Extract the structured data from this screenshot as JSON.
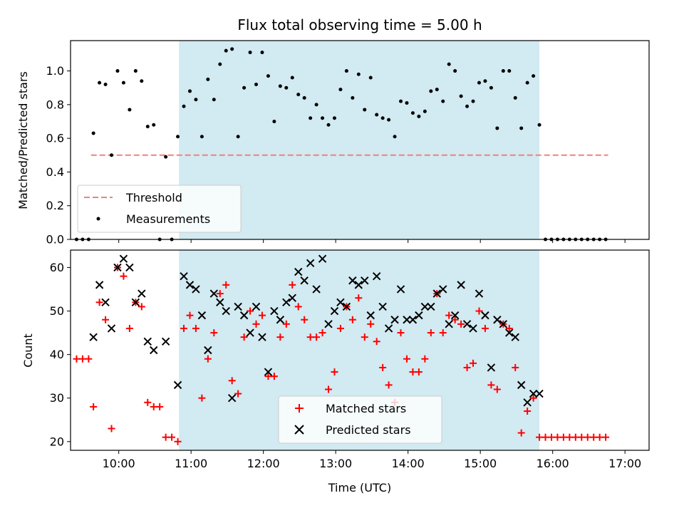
{
  "chart_data": [
    {
      "type": "scatter",
      "title": "Flux total observing time = 5.00 h",
      "xlabel": "",
      "ylabel": "Matched/Predicted stars",
      "ylim": [
        0,
        1.18
      ],
      "yticks": [
        "0.0",
        "0.2",
        "0.4",
        "0.6",
        "0.8",
        "1.0"
      ],
      "xlim": [
        "09:20",
        "17:20"
      ],
      "highlight_span": {
        "start": "10:50",
        "end": "15:49",
        "color": "#add8e6"
      },
      "threshold": {
        "name": "Threshold",
        "value": 0.5,
        "x_start": "09:37",
        "x_end": "16:46",
        "color": "#f08080",
        "style": "dashed"
      },
      "series": [
        {
          "name": "Measurements",
          "color": "#000000",
          "marker": "dot",
          "points": [
            [
              "09:25",
              0
            ],
            [
              "09:30",
              0
            ],
            [
              "09:35",
              0
            ],
            [
              "09:39",
              0.63
            ],
            [
              "09:44",
              0.93
            ],
            [
              "09:49",
              0.92
            ],
            [
              "09:54",
              0.5
            ],
            [
              "09:59",
              1.0
            ],
            [
              "10:04",
              0.93
            ],
            [
              "10:09",
              0.77
            ],
            [
              "10:14",
              1.0
            ],
            [
              "10:19",
              0.94
            ],
            [
              "10:24",
              0.67
            ],
            [
              "10:29",
              0.68
            ],
            [
              "10:34",
              0.0
            ],
            [
              "10:39",
              0.49
            ],
            [
              "10:44",
              0.0
            ],
            [
              "10:49",
              0.61
            ],
            [
              "10:54",
              0.79
            ],
            [
              "10:59",
              0.88
            ],
            [
              "11:04",
              0.83
            ],
            [
              "11:09",
              0.61
            ],
            [
              "11:14",
              0.95
            ],
            [
              "11:19",
              0.83
            ],
            [
              "11:24",
              1.04
            ],
            [
              "11:29",
              1.12
            ],
            [
              "11:34",
              1.13
            ],
            [
              "11:39",
              0.61
            ],
            [
              "11:44",
              0.9
            ],
            [
              "11:49",
              1.11
            ],
            [
              "11:54",
              0.92
            ],
            [
              "11:59",
              1.11
            ],
            [
              "12:04",
              0.97
            ],
            [
              "12:09",
              0.7
            ],
            [
              "12:14",
              0.91
            ],
            [
              "12:19",
              0.9
            ],
            [
              "12:24",
              0.96
            ],
            [
              "12:29",
              0.86
            ],
            [
              "12:34",
              0.84
            ],
            [
              "12:39",
              0.72
            ],
            [
              "12:44",
              0.8
            ],
            [
              "12:49",
              0.72
            ],
            [
              "12:54",
              0.68
            ],
            [
              "12:59",
              0.72
            ],
            [
              "13:04",
              0.89
            ],
            [
              "13:09",
              1.0
            ],
            [
              "13:14",
              0.84
            ],
            [
              "13:19",
              0.98
            ],
            [
              "13:24",
              0.77
            ],
            [
              "13:29",
              0.96
            ],
            [
              "13:34",
              0.74
            ],
            [
              "13:39",
              0.72
            ],
            [
              "13:44",
              0.71
            ],
            [
              "13:49",
              0.61
            ],
            [
              "13:54",
              0.82
            ],
            [
              "13:59",
              0.81
            ],
            [
              "14:04",
              0.75
            ],
            [
              "14:09",
              0.73
            ],
            [
              "14:14",
              0.76
            ],
            [
              "14:19",
              0.88
            ],
            [
              "14:24",
              0.89
            ],
            [
              "14:29",
              0.82
            ],
            [
              "14:34",
              1.04
            ],
            [
              "14:39",
              1.0
            ],
            [
              "14:44",
              0.85
            ],
            [
              "14:49",
              0.79
            ],
            [
              "14:54",
              0.82
            ],
            [
              "14:59",
              0.93
            ],
            [
              "15:04",
              0.94
            ],
            [
              "15:09",
              0.9
            ],
            [
              "15:14",
              0.66
            ],
            [
              "15:19",
              1.0
            ],
            [
              "15:24",
              1.0
            ],
            [
              "15:29",
              0.84
            ],
            [
              "15:34",
              0.66
            ],
            [
              "15:39",
              0.93
            ],
            [
              "15:44",
              0.97
            ],
            [
              "15:49",
              0.68
            ],
            [
              "15:54",
              0
            ],
            [
              "15:59",
              0
            ],
            [
              "16:04",
              0
            ],
            [
              "16:09",
              0
            ],
            [
              "16:14",
              0
            ],
            [
              "16:19",
              0
            ],
            [
              "16:24",
              0
            ],
            [
              "16:29",
              0
            ],
            [
              "16:34",
              0
            ],
            [
              "16:39",
              0
            ],
            [
              "16:44",
              0
            ]
          ]
        }
      ],
      "legend": {
        "placement": "lower-left",
        "entries": [
          "Threshold",
          "Measurements"
        ]
      },
      "grid": false
    },
    {
      "type": "scatter",
      "title": "",
      "xlabel": "Time (UTC)",
      "ylabel": "Count",
      "ylim": [
        18,
        64
      ],
      "yticks": [
        "20",
        "30",
        "40",
        "50",
        "60"
      ],
      "xlim": [
        "09:20",
        "17:20"
      ],
      "xticks": [
        "10:00",
        "11:00",
        "12:00",
        "13:00",
        "14:00",
        "15:00",
        "16:00",
        "17:00"
      ],
      "highlight_span": {
        "start": "10:50",
        "end": "15:49",
        "color": "#add8e6"
      },
      "series": [
        {
          "name": "Matched stars",
          "color": "#ff0000",
          "marker": "plus",
          "points": [
            [
              "09:25",
              39
            ],
            [
              "09:30",
              39
            ],
            [
              "09:35",
              39
            ],
            [
              "09:39",
              28
            ],
            [
              "09:44",
              52
            ],
            [
              "09:49",
              48
            ],
            [
              "09:54",
              23
            ],
            [
              "09:59",
              60
            ],
            [
              "10:04",
              58
            ],
            [
              "10:09",
              46
            ],
            [
              "10:14",
              52
            ],
            [
              "10:19",
              51
            ],
            [
              "10:24",
              29
            ],
            [
              "10:29",
              28
            ],
            [
              "10:34",
              28
            ],
            [
              "10:39",
              21
            ],
            [
              "10:44",
              21
            ],
            [
              "10:49",
              20
            ],
            [
              "10:54",
              46
            ],
            [
              "10:59",
              49
            ],
            [
              "11:04",
              46
            ],
            [
              "11:09",
              30
            ],
            [
              "11:14",
              39
            ],
            [
              "11:19",
              45
            ],
            [
              "11:24",
              54
            ],
            [
              "11:29",
              56
            ],
            [
              "11:34",
              34
            ],
            [
              "11:39",
              31
            ],
            [
              "11:44",
              44
            ],
            [
              "11:49",
              50
            ],
            [
              "11:54",
              47
            ],
            [
              "11:59",
              49
            ],
            [
              "12:04",
              35
            ],
            [
              "12:09",
              35
            ],
            [
              "12:14",
              44
            ],
            [
              "12:19",
              47
            ],
            [
              "12:24",
              56
            ],
            [
              "12:29",
              51
            ],
            [
              "12:34",
              48
            ],
            [
              "12:39",
              44
            ],
            [
              "12:44",
              44
            ],
            [
              "12:49",
              45
            ],
            [
              "12:54",
              32
            ],
            [
              "12:59",
              36
            ],
            [
              "13:04",
              46
            ],
            [
              "13:09",
              51
            ],
            [
              "13:14",
              48
            ],
            [
              "13:19",
              53
            ],
            [
              "13:24",
              44
            ],
            [
              "13:29",
              47
            ],
            [
              "13:34",
              43
            ],
            [
              "13:39",
              37
            ],
            [
              "13:44",
              33
            ],
            [
              "13:49",
              29
            ],
            [
              "13:54",
              45
            ],
            [
              "13:59",
              39
            ],
            [
              "14:04",
              36
            ],
            [
              "14:09",
              36
            ],
            [
              "14:14",
              39
            ],
            [
              "14:19",
              45
            ],
            [
              "14:24",
              54
            ],
            [
              "14:29",
              45
            ],
            [
              "14:34",
              49
            ],
            [
              "14:39",
              48
            ],
            [
              "14:44",
              47
            ],
            [
              "14:49",
              37
            ],
            [
              "14:54",
              38
            ],
            [
              "14:59",
              50
            ],
            [
              "15:04",
              46
            ],
            [
              "15:09",
              33
            ],
            [
              "15:14",
              32
            ],
            [
              "15:19",
              47
            ],
            [
              "15:24",
              46
            ],
            [
              "15:29",
              37
            ],
            [
              "15:34",
              22
            ],
            [
              "15:39",
              27
            ],
            [
              "15:44",
              30
            ],
            [
              "15:49",
              21
            ],
            [
              "15:54",
              21
            ],
            [
              "15:59",
              21
            ],
            [
              "16:04",
              21
            ],
            [
              "16:09",
              21
            ],
            [
              "16:14",
              21
            ],
            [
              "16:19",
              21
            ],
            [
              "16:24",
              21
            ],
            [
              "16:29",
              21
            ],
            [
              "16:34",
              21
            ],
            [
              "16:39",
              21
            ],
            [
              "16:44",
              21
            ]
          ]
        },
        {
          "name": "Predicted stars",
          "color": "#000000",
          "marker": "x",
          "points": [
            [
              "09:39",
              44
            ],
            [
              "09:44",
              56
            ],
            [
              "09:49",
              52
            ],
            [
              "09:54",
              46
            ],
            [
              "09:59",
              60
            ],
            [
              "10:04",
              62
            ],
            [
              "10:09",
              60
            ],
            [
              "10:14",
              52
            ],
            [
              "10:19",
              54
            ],
            [
              "10:24",
              43
            ],
            [
              "10:29",
              41
            ],
            [
              "10:39",
              43
            ],
            [
              "10:49",
              33
            ],
            [
              "10:54",
              58
            ],
            [
              "10:59",
              56
            ],
            [
              "11:04",
              55
            ],
            [
              "11:09",
              49
            ],
            [
              "11:14",
              41
            ],
            [
              "11:19",
              54
            ],
            [
              "11:24",
              52
            ],
            [
              "11:29",
              50
            ],
            [
              "11:34",
              30
            ],
            [
              "11:39",
              51
            ],
            [
              "11:44",
              49
            ],
            [
              "11:49",
              45
            ],
            [
              "11:54",
              51
            ],
            [
              "11:59",
              44
            ],
            [
              "12:04",
              36
            ],
            [
              "12:09",
              50
            ],
            [
              "12:14",
              48
            ],
            [
              "12:19",
              52
            ],
            [
              "12:24",
              53
            ],
            [
              "12:29",
              59
            ],
            [
              "12:34",
              57
            ],
            [
              "12:39",
              61
            ],
            [
              "12:44",
              55
            ],
            [
              "12:49",
              62
            ],
            [
              "12:54",
              47
            ],
            [
              "12:59",
              50
            ],
            [
              "13:04",
              52
            ],
            [
              "13:09",
              51
            ],
            [
              "13:14",
              57
            ],
            [
              "13:19",
              56
            ],
            [
              "13:24",
              57
            ],
            [
              "13:29",
              49
            ],
            [
              "13:34",
              58
            ],
            [
              "13:39",
              51
            ],
            [
              "13:44",
              46
            ],
            [
              "13:49",
              48
            ],
            [
              "13:54",
              55
            ],
            [
              "13:59",
              48
            ],
            [
              "14:04",
              48
            ],
            [
              "14:09",
              49
            ],
            [
              "14:14",
              51
            ],
            [
              "14:19",
              51
            ],
            [
              "14:24",
              54
            ],
            [
              "14:29",
              55
            ],
            [
              "14:34",
              47
            ],
            [
              "14:39",
              49
            ],
            [
              "14:44",
              56
            ],
            [
              "14:49",
              47
            ],
            [
              "14:54",
              46
            ],
            [
              "14:59",
              54
            ],
            [
              "15:04",
              49
            ],
            [
              "15:09",
              37
            ],
            [
              "15:14",
              48
            ],
            [
              "15:19",
              47
            ],
            [
              "15:24",
              45
            ],
            [
              "15:29",
              44
            ],
            [
              "15:34",
              33
            ],
            [
              "15:39",
              29
            ],
            [
              "15:44",
              31
            ],
            [
              "15:49",
              31
            ]
          ]
        }
      ],
      "legend": {
        "placement": "lower-center",
        "entries": [
          "Matched stars",
          "Predicted stars"
        ]
      },
      "grid": false
    }
  ]
}
